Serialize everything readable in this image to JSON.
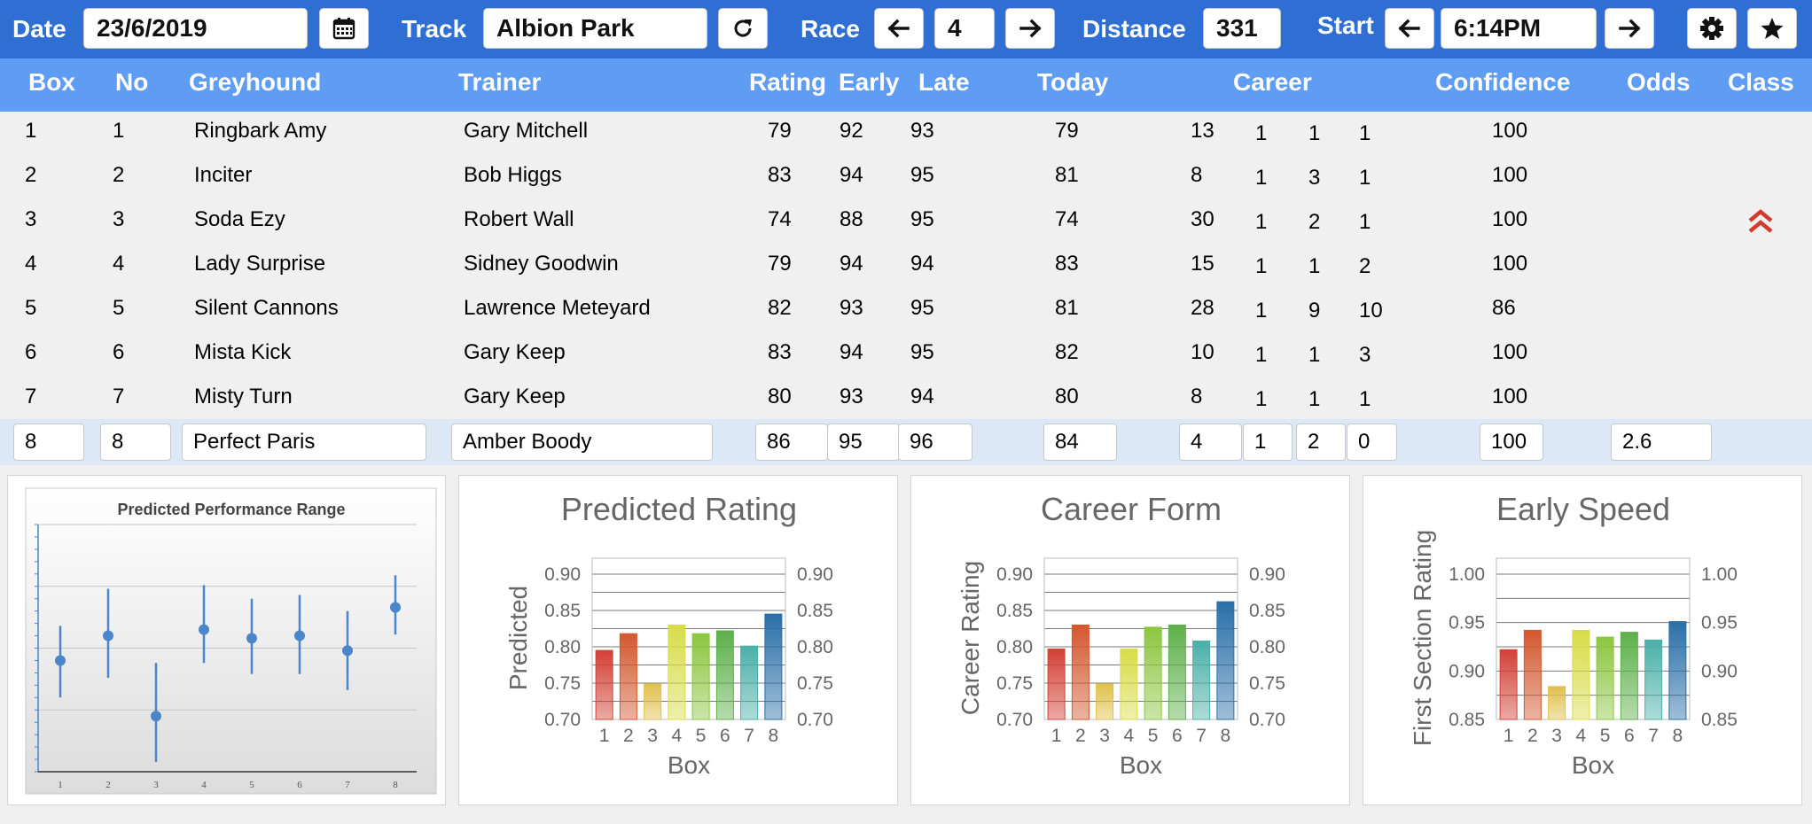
{
  "toolbar": {
    "date_label": "Date",
    "date_value": "23/6/2019",
    "track_label": "Track",
    "track_value": "Albion Park",
    "race_label": "Race",
    "race_value": "4",
    "distance_label": "Distance",
    "distance_value": "331",
    "start_label": "Start",
    "start_value": "6:14PM",
    "icons": [
      "calendar-icon",
      "refresh-icon",
      "arrow-left-icon",
      "arrow-right-icon",
      "gear-icon",
      "star-icon"
    ]
  },
  "table": {
    "headers": {
      "box": "Box",
      "no": "No",
      "greyhound": "Greyhound",
      "trainer": "Trainer",
      "rating": "Rating",
      "early": "Early",
      "late": "Late",
      "today": "Today",
      "career": "Career",
      "confidence": "Confidence",
      "odds": "Odds",
      "class": "Class"
    },
    "rows": [
      {
        "box": "1",
        "no": "1",
        "name": "Ringbark Amy",
        "trainer": "Gary Mitchell",
        "rating": "79",
        "early": "92",
        "late": "93",
        "today": "79",
        "c1": "13",
        "c2": "1",
        "c3": "1",
        "c4": "1",
        "confidence": "100",
        "odds": "",
        "class_icon": ""
      },
      {
        "box": "2",
        "no": "2",
        "name": "Inciter",
        "trainer": "Bob Higgs",
        "rating": "83",
        "early": "94",
        "late": "95",
        "today": "81",
        "c1": "8",
        "c2": "1",
        "c3": "3",
        "c4": "1",
        "confidence": "100",
        "odds": "",
        "class_icon": ""
      },
      {
        "box": "3",
        "no": "3",
        "name": "Soda Ezy",
        "trainer": "Robert Wall",
        "rating": "74",
        "early": "88",
        "late": "95",
        "today": "74",
        "c1": "30",
        "c2": "1",
        "c3": "2",
        "c4": "1",
        "confidence": "100",
        "odds": "",
        "class_icon": "double-chevron-up-icon"
      },
      {
        "box": "4",
        "no": "4",
        "name": "Lady Surprise",
        "trainer": "Sidney Goodwin",
        "rating": "79",
        "early": "94",
        "late": "94",
        "today": "83",
        "c1": "15",
        "c2": "1",
        "c3": "1",
        "c4": "2",
        "confidence": "100",
        "odds": "",
        "class_icon": ""
      },
      {
        "box": "5",
        "no": "5",
        "name": "Silent Cannons",
        "trainer": "Lawrence Meteyard",
        "rating": "82",
        "early": "93",
        "late": "95",
        "today": "81",
        "c1": "28",
        "c2": "1",
        "c3": "9",
        "c4": "10",
        "confidence": "86",
        "odds": "",
        "class_icon": ""
      },
      {
        "box": "6",
        "no": "6",
        "name": "Mista Kick",
        "trainer": "Gary Keep",
        "rating": "83",
        "early": "94",
        "late": "95",
        "today": "82",
        "c1": "10",
        "c2": "1",
        "c3": "1",
        "c4": "3",
        "confidence": "100",
        "odds": "",
        "class_icon": ""
      },
      {
        "box": "7",
        "no": "7",
        "name": "Misty Turn",
        "trainer": "Gary Keep",
        "rating": "80",
        "early": "93",
        "late": "94",
        "today": "80",
        "c1": "8",
        "c2": "1",
        "c3": "1",
        "c4": "1",
        "confidence": "100",
        "odds": "",
        "class_icon": ""
      },
      {
        "box": "8",
        "no": "8",
        "name": "Perfect Paris",
        "trainer": "Amber Boody",
        "rating": "86",
        "early": "95",
        "late": "96",
        "today": "84",
        "c1": "4",
        "c2": "1",
        "c3": "2",
        "c4": "0",
        "confidence": "100",
        "odds": "2.6",
        "class_icon": ""
      }
    ]
  },
  "chart_data": [
    {
      "type": "scatter",
      "title": "Predicted Performance Range",
      "x": [
        1,
        2,
        3,
        4,
        5,
        6,
        7,
        8
      ],
      "x_ticks": [
        "1",
        "2",
        "3",
        "4",
        "5",
        "6",
        "7",
        "8"
      ],
      "y": [
        0.79,
        0.81,
        0.745,
        0.815,
        0.808,
        0.81,
        0.798,
        0.833
      ],
      "y_low": [
        0.76,
        0.776,
        0.708,
        0.788,
        0.779,
        0.779,
        0.766,
        0.811
      ],
      "y_high": [
        0.818,
        0.848,
        0.788,
        0.851,
        0.84,
        0.843,
        0.83,
        0.859
      ],
      "ylim": [
        0.7,
        0.9
      ],
      "grid": true,
      "color": "#4a86c8"
    },
    {
      "type": "bar",
      "title": "Predicted Rating",
      "xlabel": "Box",
      "ylabel": "Predicted",
      "categories": [
        "1",
        "2",
        "3",
        "4",
        "5",
        "6",
        "7",
        "8"
      ],
      "values": [
        0.795,
        0.818,
        0.749,
        0.83,
        0.818,
        0.822,
        0.801,
        0.845
      ],
      "ylim": [
        0.7,
        0.9
      ],
      "yticks": [
        "0.70",
        "0.75",
        "0.80",
        "0.85",
        "0.90"
      ],
      "grid": true
    },
    {
      "type": "bar",
      "title": "Career Form",
      "xlabel": "Box",
      "ylabel": "Career Rating",
      "categories": [
        "1",
        "2",
        "3",
        "4",
        "5",
        "6",
        "7",
        "8"
      ],
      "values": [
        0.797,
        0.83,
        0.749,
        0.797,
        0.827,
        0.83,
        0.808,
        0.862
      ],
      "ylim": [
        0.7,
        0.9
      ],
      "yticks": [
        "0.70",
        "0.75",
        "0.80",
        "0.85",
        "0.90"
      ],
      "grid": true
    },
    {
      "type": "bar",
      "title": "Early Speed",
      "xlabel": "Box",
      "ylabel": "First Section Rating",
      "categories": [
        "1",
        "2",
        "3",
        "4",
        "5",
        "6",
        "7",
        "8"
      ],
      "values": [
        0.922,
        0.942,
        0.884,
        0.942,
        0.935,
        0.94,
        0.932,
        0.951
      ],
      "ylim": [
        0.85,
        1.0
      ],
      "yticks": [
        "0.85",
        "0.90",
        "0.95",
        "1.00"
      ],
      "grid": true
    }
  ],
  "colors": {
    "topbar": "#2f6fd3",
    "header": "#5f9cf3",
    "selected_row": "#dde8f6",
    "class_icon": "#d23b2b",
    "bar_gradient": [
      "#d24136",
      "#d4572e",
      "#e0c04c",
      "#d8dc48",
      "#8cc63f",
      "#5db04a",
      "#4ab0a8",
      "#2a6fa8"
    ]
  }
}
